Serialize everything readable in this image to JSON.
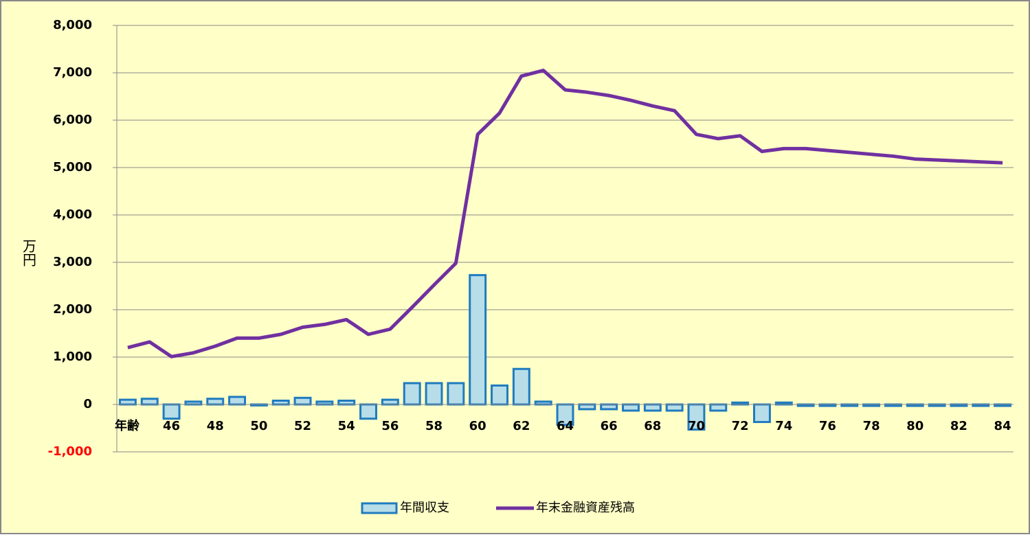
{
  "chart_data": {
    "type": "bar_line",
    "x_label": "年齢",
    "y_label": "万円",
    "categories": [
      null,
      null,
      "46",
      null,
      "48",
      null,
      "50",
      null,
      "52",
      null,
      "54",
      null,
      "56",
      null,
      "58",
      null,
      "60",
      null,
      "62",
      null,
      "64",
      null,
      "66",
      null,
      "68",
      null,
      "70",
      null,
      "72",
      null,
      "74",
      null,
      "76",
      null,
      "78",
      null,
      "80",
      null,
      "82",
      null,
      "84"
    ],
    "series": [
      {
        "name": "年間収支",
        "type": "bar",
        "color": "#b7dde8",
        "edge_color": "#1f7bbf",
        "values": [
          100,
          120,
          -300,
          60,
          120,
          160,
          -20,
          80,
          140,
          60,
          80,
          -300,
          100,
          450,
          450,
          450,
          2730,
          400,
          750,
          60,
          -430,
          -100,
          -100,
          -130,
          -130,
          -130,
          -530,
          -130,
          40,
          -370,
          40,
          -30,
          -30,
          -30,
          -30,
          -30,
          -30,
          -30,
          -30,
          -30,
          -30
        ]
      },
      {
        "name": "年末金融資産残高",
        "type": "line",
        "color": "#7030a0",
        "values": [
          1200,
          1320,
          1010,
          1090,
          1230,
          1400,
          1400,
          1480,
          1630,
          1690,
          1790,
          1480,
          1590,
          2050,
          2520,
          2980,
          5700,
          6150,
          6930,
          7050,
          6640,
          6590,
          6520,
          6420,
          6300,
          6200,
          5700,
          5610,
          5670,
          5340,
          5400,
          5400,
          5360,
          5320,
          5280,
          5240,
          5180,
          5160,
          5140,
          5120,
          5100
        ]
      }
    ],
    "ylim": [
      -1000,
      8000
    ],
    "yticks": [
      {
        "value": -1000,
        "label": "-1,000",
        "color": "#ff0000"
      },
      0,
      {
        "value": 1000,
        "label": "1,000"
      },
      {
        "value": 2000,
        "label": "2,000"
      },
      {
        "value": 3000,
        "label": "3,000"
      },
      {
        "value": 4000,
        "label": "4,000"
      },
      {
        "value": 5000,
        "label": "5,000"
      },
      {
        "value": 6000,
        "label": "6,000"
      },
      {
        "value": 7000,
        "label": "7,000"
      },
      {
        "value": 8000,
        "label": "8,000"
      }
    ],
    "grid": true,
    "legend": "bottom",
    "background": "#ffffc8"
  }
}
